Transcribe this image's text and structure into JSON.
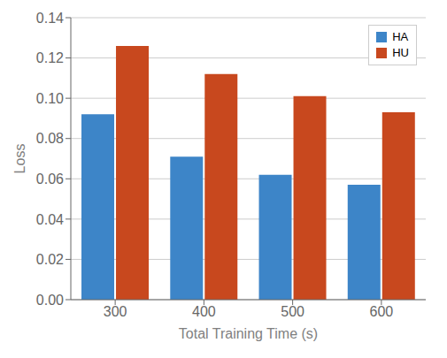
{
  "chart_data": {
    "type": "bar",
    "categories": [
      "300",
      "400",
      "500",
      "600"
    ],
    "series": [
      {
        "name": "HA",
        "color": "#3D85C8",
        "values": [
          0.092,
          0.071,
          0.062,
          0.057
        ]
      },
      {
        "name": "HU",
        "color": "#C8481E",
        "values": [
          0.126,
          0.112,
          0.101,
          0.093
        ]
      }
    ],
    "xlabel": "Total Training Time (s)",
    "ylabel": "Loss",
    "ylim": [
      0,
      0.14
    ],
    "yticks": [
      {
        "value": 0,
        "label": "0.00"
      },
      {
        "value": 0.02,
        "label": "0.02"
      },
      {
        "value": 0.04,
        "label": "0.04"
      },
      {
        "value": 0.06,
        "label": "0.06"
      },
      {
        "value": 0.08,
        "label": "0.08"
      },
      {
        "value": 0.1,
        "label": "0.10"
      },
      {
        "value": 0.12,
        "label": "0.12"
      },
      {
        "value": 0.14,
        "label": "0.14"
      }
    ],
    "grid": true,
    "legend": "upper right"
  }
}
